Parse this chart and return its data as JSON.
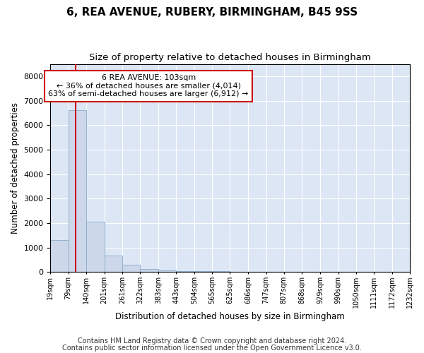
{
  "title1": "6, REA AVENUE, RUBERY, BIRMINGHAM, B45 9SS",
  "title2": "Size of property relative to detached houses in Birmingham",
  "xlabel": "Distribution of detached houses by size in Birmingham",
  "ylabel": "Number of detached properties",
  "footnote1": "Contains HM Land Registry data © Crown copyright and database right 2024.",
  "footnote2": "Contains public sector information licensed under the Open Government Licence v3.0.",
  "bin_edges": [
    19,
    79,
    140,
    201,
    261,
    322,
    383,
    443,
    504,
    565,
    625,
    686,
    747,
    807,
    868,
    929,
    990,
    1050,
    1111,
    1172,
    1232
  ],
  "bin_heights": [
    1300,
    6600,
    2050,
    660,
    290,
    130,
    75,
    50,
    50,
    50,
    0,
    0,
    0,
    0,
    0,
    0,
    0,
    0,
    0,
    0
  ],
  "property_size": 103,
  "bar_color": "#ccd8ea",
  "bar_edge_color": "#8aaac8",
  "vline_color": "#cc0000",
  "annotation_text": "6 REA AVENUE: 103sqm\n← 36% of detached houses are smaller (4,014)\n63% of semi-detached houses are larger (6,912) →",
  "annotation_box_facecolor": "#ffffff",
  "annotation_box_edgecolor": "#cc0000",
  "ylim": [
    0,
    8500
  ],
  "yticks": [
    0,
    1000,
    2000,
    3000,
    4000,
    5000,
    6000,
    7000,
    8000
  ],
  "plot_bg_color": "#dce6f5",
  "grid_color": "#ffffff",
  "title1_fontsize": 11,
  "title2_fontsize": 9.5,
  "footnote_fontsize": 7
}
